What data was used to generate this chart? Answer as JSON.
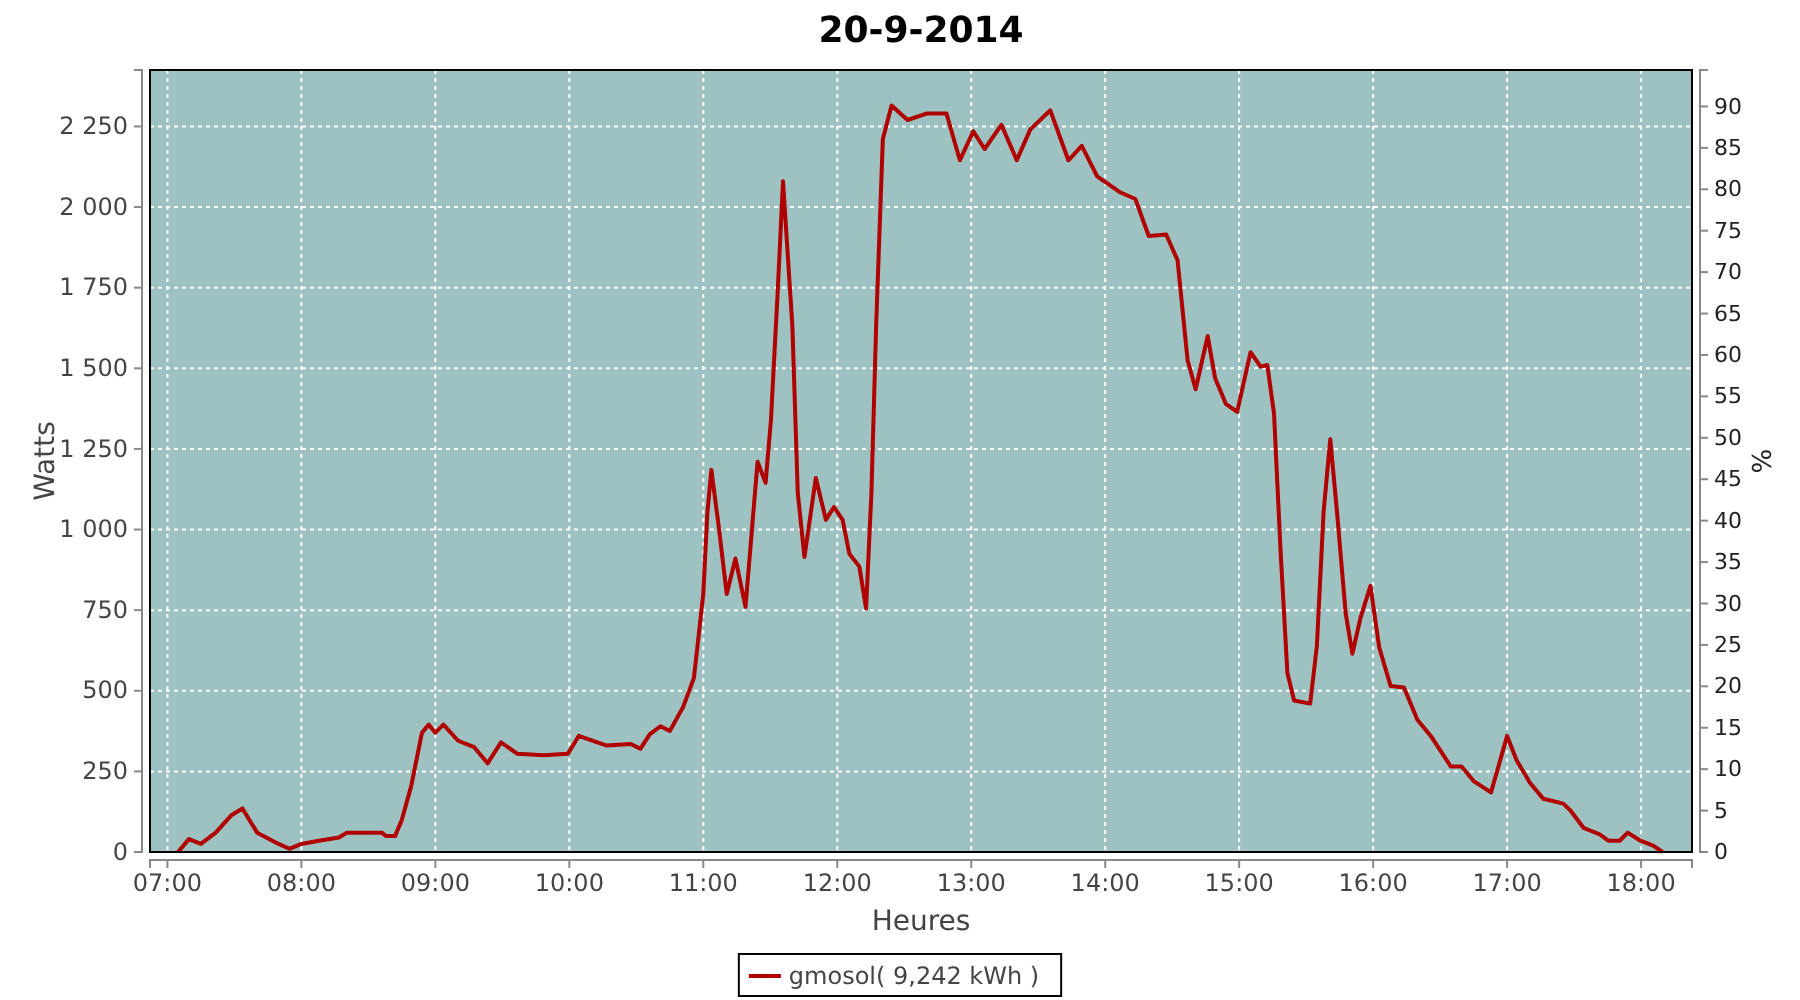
{
  "chart_data": {
    "type": "line",
    "title": "20-9-2014",
    "xlabel": "Heures",
    "ylabel": "Watts",
    "y2label": "%",
    "xlim": [
      6.87,
      18.38
    ],
    "xticks": [
      {
        "value": 7,
        "label": "07:00"
      },
      {
        "value": 8,
        "label": "08:00"
      },
      {
        "value": 9,
        "label": "09:00"
      },
      {
        "value": 10,
        "label": "10:00"
      },
      {
        "value": 11,
        "label": "11:00"
      },
      {
        "value": 12,
        "label": "12:00"
      },
      {
        "value": 13,
        "label": "13:00"
      },
      {
        "value": 14,
        "label": "14:00"
      },
      {
        "value": 15,
        "label": "15:00"
      },
      {
        "value": 16,
        "label": "16:00"
      },
      {
        "value": 17,
        "label": "17:00"
      },
      {
        "value": 18,
        "label": "18:00"
      }
    ],
    "ylim": [
      0,
      2425
    ],
    "yticks": [
      0,
      250,
      500,
      750,
      {
        "value": 1000,
        "label": "1 000"
      },
      {
        "value": 1250,
        "label": "1 250"
      },
      {
        "value": 1500,
        "label": "1 500"
      },
      {
        "value": 1750,
        "label": "1 750"
      },
      {
        "value": 2000,
        "label": "2 000"
      },
      {
        "value": 2250,
        "label": "2 250"
      }
    ],
    "y2lim": [
      0,
      94.4
    ],
    "y2ticks": [
      0,
      5,
      10,
      15,
      20,
      25,
      30,
      35,
      40,
      45,
      50,
      55,
      60,
      65,
      70,
      75,
      80,
      85,
      90
    ],
    "grid": true,
    "legend": "bottom",
    "line_style": "solid",
    "marker": "none",
    "series": [
      {
        "name": "gmosol( 9,242 kWh )",
        "color": "#b00000",
        "x": [
          7.08,
          7.16,
          7.25,
          7.36,
          7.48,
          7.56,
          7.67,
          7.83,
          7.91,
          8.0,
          8.13,
          8.28,
          8.34,
          8.6,
          8.63,
          8.7,
          8.75,
          8.82,
          8.9,
          8.95,
          9.0,
          9.06,
          9.17,
          9.29,
          9.39,
          9.49,
          9.61,
          9.81,
          9.99,
          10.07,
          10.28,
          10.46,
          10.53,
          10.6,
          10.68,
          10.75,
          10.85,
          10.93,
          11.0,
          11.03,
          11.06,
          11.115,
          11.175,
          11.24,
          11.315,
          11.365,
          11.405,
          11.465,
          11.505,
          11.555,
          11.595,
          11.665,
          11.705,
          11.755,
          11.84,
          11.915,
          11.975,
          12.04,
          12.09,
          12.165,
          12.215,
          12.255,
          12.29,
          12.34,
          12.405,
          12.525,
          12.665,
          12.815,
          12.915,
          13.015,
          13.1,
          13.225,
          13.34,
          13.44,
          13.59,
          13.725,
          13.825,
          13.94,
          14.115,
          14.225,
          14.325,
          14.455,
          14.54,
          14.615,
          14.675,
          14.765,
          14.82,
          14.9,
          14.985,
          15.085,
          15.16,
          15.21,
          15.26,
          15.31,
          15.36,
          15.41,
          15.53,
          15.58,
          15.63,
          15.68,
          15.73,
          15.795,
          15.845,
          15.905,
          15.98,
          16.045,
          16.13,
          16.23,
          16.33,
          16.43,
          16.58,
          16.66,
          16.75,
          16.88,
          17.0,
          17.07,
          17.17,
          17.27,
          17.42,
          17.47,
          17.57,
          17.69,
          17.755,
          17.84,
          17.9,
          17.995,
          18.09,
          18.16
        ],
        "values": [
          0,
          40,
          25,
          60,
          115,
          135,
          60,
          25,
          10,
          25,
          35,
          45,
          60,
          60,
          50,
          50,
          100,
          205,
          370,
          395,
          370,
          395,
          345,
          325,
          275,
          340,
          305,
          300,
          305,
          360,
          330,
          335,
          320,
          365,
          390,
          375,
          450,
          540,
          800,
          1050,
          1185,
          1010,
          800,
          910,
          760,
          1010,
          1210,
          1145,
          1340,
          1735,
          2080,
          1630,
          1115,
          915,
          1160,
          1030,
          1070,
          1030,
          925,
          885,
          755,
          1115,
          1630,
          2210,
          2315,
          2270,
          2290,
          2290,
          2145,
          2235,
          2180,
          2255,
          2145,
          2240,
          2300,
          2145,
          2190,
          2095,
          2045,
          2025,
          1910,
          1915,
          1835,
          1525,
          1435,
          1600,
          1470,
          1390,
          1365,
          1550,
          1505,
          1510,
          1360,
          925,
          555,
          470,
          460,
          640,
          1055,
          1280,
          1055,
          740,
          615,
          725,
          825,
          635,
          515,
          510,
          410,
          360,
          265,
          265,
          220,
          185,
          360,
          285,
          215,
          165,
          150,
          130,
          75,
          55,
          35,
          35,
          60,
          35,
          20,
          0
        ]
      }
    ]
  }
}
